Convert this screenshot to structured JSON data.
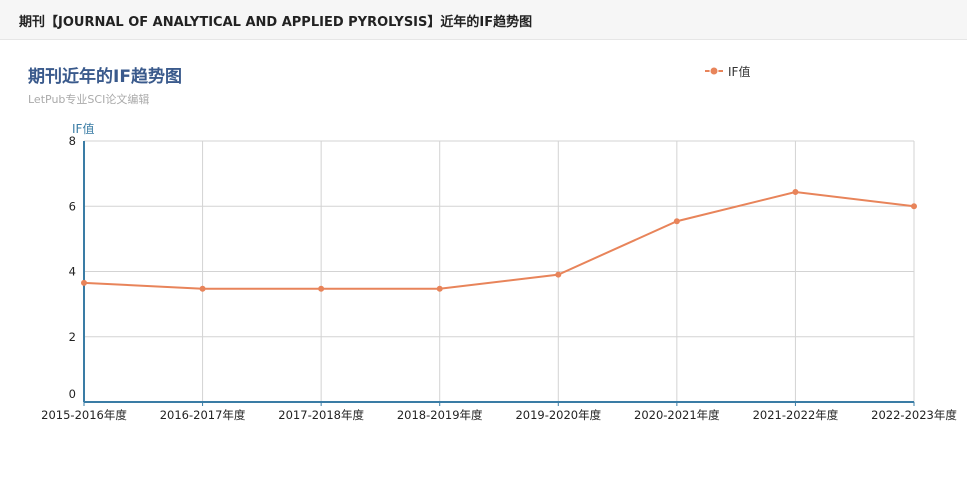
{
  "header": {
    "title": "期刊【JOURNAL OF ANALYTICAL AND APPLIED PYROLYSIS】近年的IF趋势图"
  },
  "colors": {
    "series": "#e8845a",
    "axis": "#3a7ca5",
    "grid": "#d3d3d3",
    "title": "#3a5a8c"
  },
  "chart_data": {
    "type": "line",
    "title": "期刊近年的IF趋势图",
    "subtitle": "LetPub专业SCI论文编辑",
    "ylabel": "IF值",
    "xlabel": "",
    "ylim": [
      0,
      8
    ],
    "yticks": [
      0,
      2,
      4,
      6,
      8
    ],
    "grid": true,
    "legend_position": "top-right",
    "categories": [
      "2015-2016年度",
      "2016-2017年度",
      "2017-2018年度",
      "2018-2019年度",
      "2019-2020年度",
      "2020-2021年度",
      "2021-2022年度",
      "2022-2023年度"
    ],
    "series": [
      {
        "name": "IF值",
        "values": [
          3.652,
          3.47,
          3.47,
          3.47,
          3.905,
          5.541,
          6.437,
          6.0
        ]
      }
    ]
  }
}
